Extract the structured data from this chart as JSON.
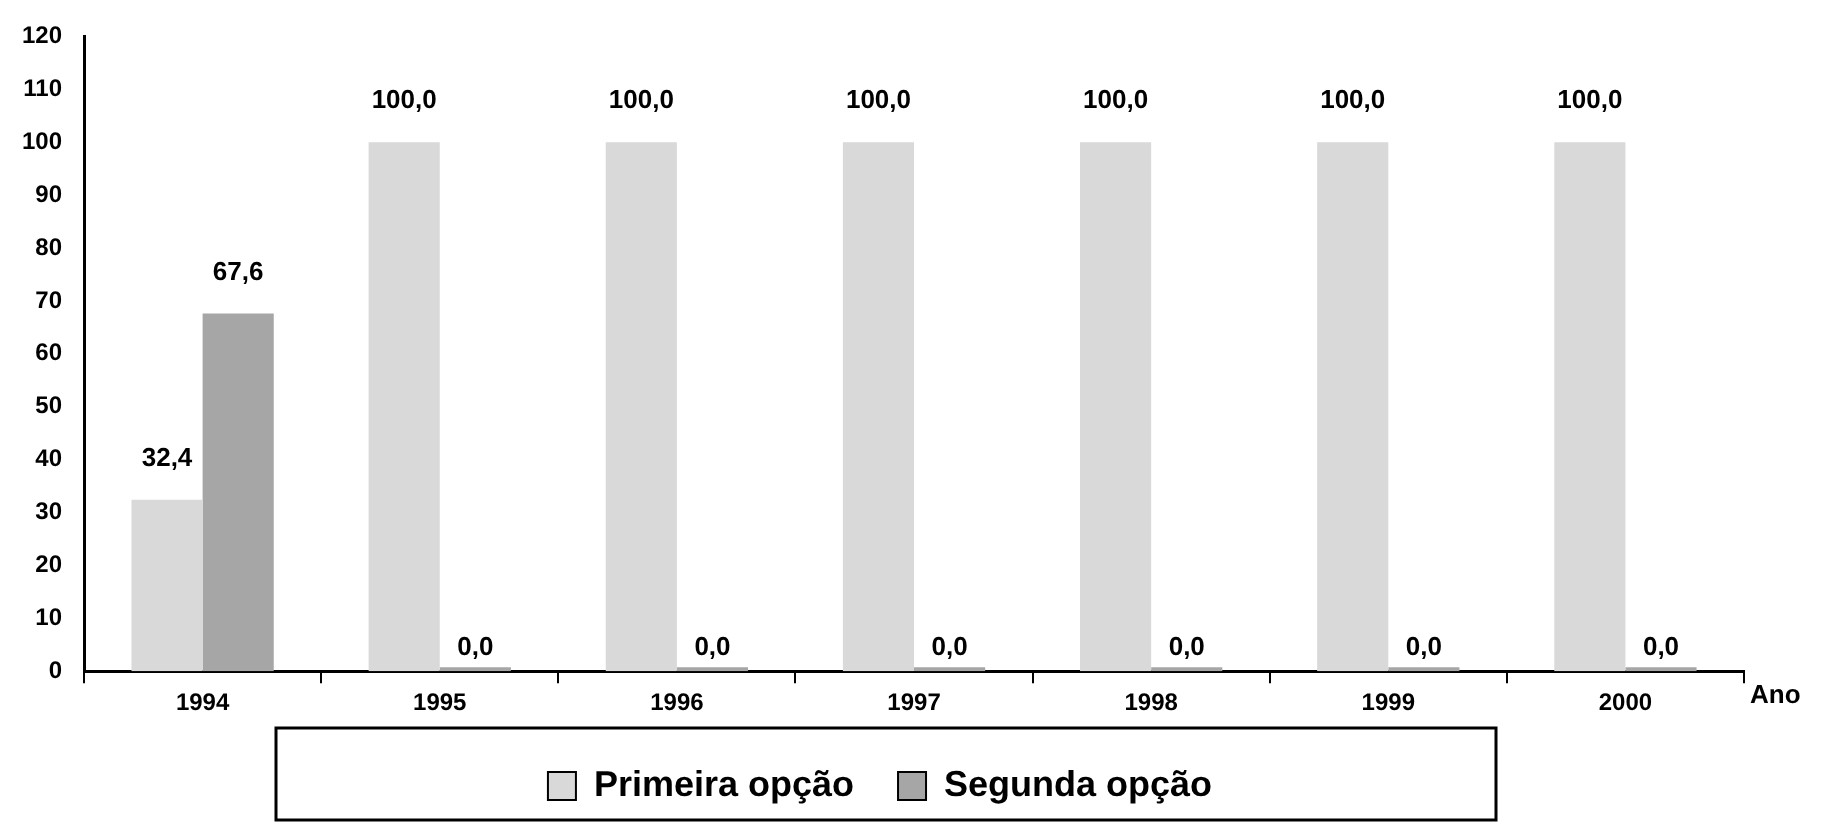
{
  "chart_data": {
    "type": "bar",
    "xlabel": "Ano",
    "categories": [
      "1994",
      "1995",
      "1996",
      "1997",
      "1998",
      "1999",
      "2000"
    ],
    "series": [
      {
        "name": "Primeira opção",
        "color": "#d9d9d9",
        "values": [
          32.4,
          100,
          100,
          100,
          100,
          100,
          100
        ],
        "value_labels": [
          "32,4",
          "100,0",
          "100,0",
          "100,0",
          "100,0",
          "100,0",
          "100,0"
        ]
      },
      {
        "name": "Segunda opção",
        "color": "#a6a6a6",
        "values": [
          67.6,
          0,
          0,
          0,
          0,
          0,
          0
        ],
        "value_labels": [
          "67,6",
          "0,0",
          "0,0",
          "0,0",
          "0,0",
          "0,0",
          "0,0"
        ]
      }
    ],
    "ylim": [
      0,
      120
    ],
    "yticks": [
      0,
      10,
      20,
      30,
      40,
      50,
      60,
      70,
      80,
      90,
      100,
      110,
      120
    ],
    "legend": "bottom"
  }
}
